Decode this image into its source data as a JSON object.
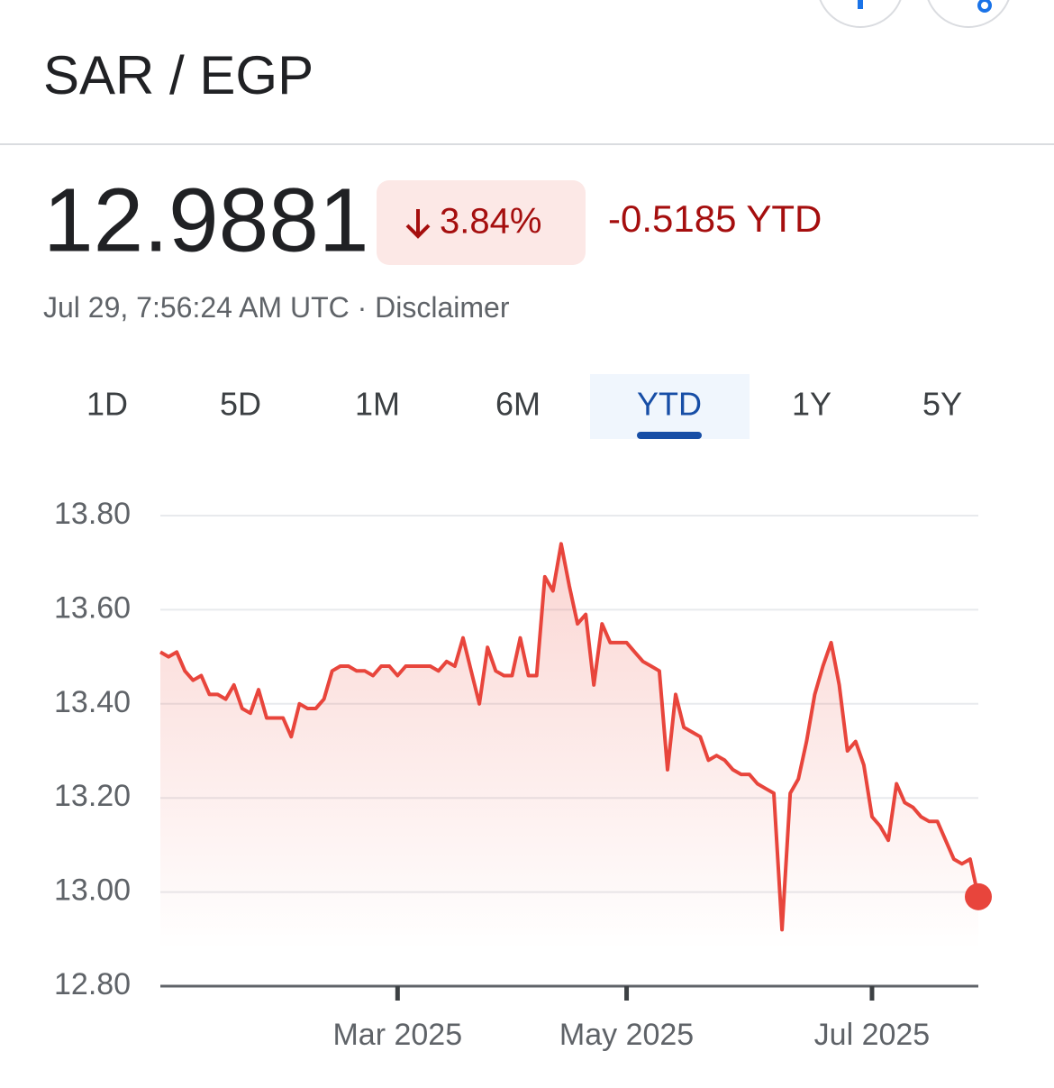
{
  "header": {
    "title": "SAR / EGP"
  },
  "quote": {
    "price": "12.9881",
    "change_percent": "3.84%",
    "change_ytd": "-0.5185 YTD",
    "timestamp": "Jul 29, 7:56:24 AM UTC",
    "separator": "·",
    "disclaimer": "Disclaimer"
  },
  "tabs": [
    "1D",
    "5D",
    "1M",
    "6M",
    "YTD",
    "1Y",
    "5Y"
  ],
  "active_tab": "YTD",
  "chart_data": {
    "type": "line",
    "color": "#e8453c",
    "grid": true,
    "categories": [
      null,
      null,
      null,
      null,
      null,
      null,
      null,
      null,
      null,
      null,
      null,
      null,
      null,
      null,
      null,
      null,
      null,
      null,
      null,
      null,
      null,
      null,
      null,
      null,
      null,
      null,
      null,
      null,
      null,
      "Mar 2025",
      null,
      null,
      null,
      null,
      null,
      null,
      null,
      null,
      null,
      null,
      null,
      null,
      null,
      null,
      null,
      null,
      null,
      null,
      null,
      null,
      null,
      null,
      null,
      null,
      null,
      null,
      null,
      "May 2025",
      null,
      null,
      null,
      null,
      null,
      null,
      null,
      null,
      null,
      null,
      null,
      null,
      null,
      null,
      null,
      null,
      null,
      null,
      null,
      null,
      null,
      null,
      null,
      null,
      null,
      null,
      null,
      null,
      null,
      "Jul 2025",
      null,
      null,
      null,
      null,
      null,
      null,
      null,
      null,
      null,
      null,
      null,
      null,
      null
    ],
    "values": [
      13.51,
      13.5,
      13.51,
      13.47,
      13.45,
      13.46,
      13.42,
      13.42,
      13.41,
      13.44,
      13.39,
      13.38,
      13.43,
      13.37,
      13.37,
      13.37,
      13.33,
      13.4,
      13.39,
      13.39,
      13.41,
      13.47,
      13.48,
      13.48,
      13.47,
      13.47,
      13.46,
      13.48,
      13.48,
      13.46,
      13.48,
      13.48,
      13.48,
      13.48,
      13.47,
      13.49,
      13.48,
      13.54,
      13.47,
      13.4,
      13.52,
      13.47,
      13.46,
      13.46,
      13.54,
      13.46,
      13.46,
      13.67,
      13.64,
      13.74,
      13.65,
      13.57,
      13.59,
      13.44,
      13.57,
      13.53,
      13.53,
      13.53,
      13.51,
      13.49,
      13.48,
      13.47,
      13.26,
      13.42,
      13.35,
      13.34,
      13.33,
      13.28,
      13.29,
      13.28,
      13.26,
      13.25,
      13.25,
      13.23,
      13.22,
      13.21,
      12.92,
      13.21,
      13.24,
      13.32,
      13.42,
      13.48,
      13.53,
      13.44,
      13.3,
      13.32,
      13.27,
      13.16,
      13.14,
      13.11,
      13.23,
      13.19,
      13.18,
      13.16,
      13.15,
      13.15,
      13.11,
      13.07,
      13.06,
      13.07,
      12.99
    ],
    "ylim": [
      12.8,
      13.8
    ],
    "yticks": [
      {
        "value": 12.8,
        "label": "12.80"
      },
      {
        "value": 13,
        "label": "13.00"
      },
      {
        "value": 13.2,
        "label": "13.20"
      },
      {
        "value": 13.4,
        "label": "13.40"
      },
      {
        "value": 13.6,
        "label": "13.60"
      },
      {
        "value": 13.8,
        "label": "13.80"
      }
    ]
  }
}
